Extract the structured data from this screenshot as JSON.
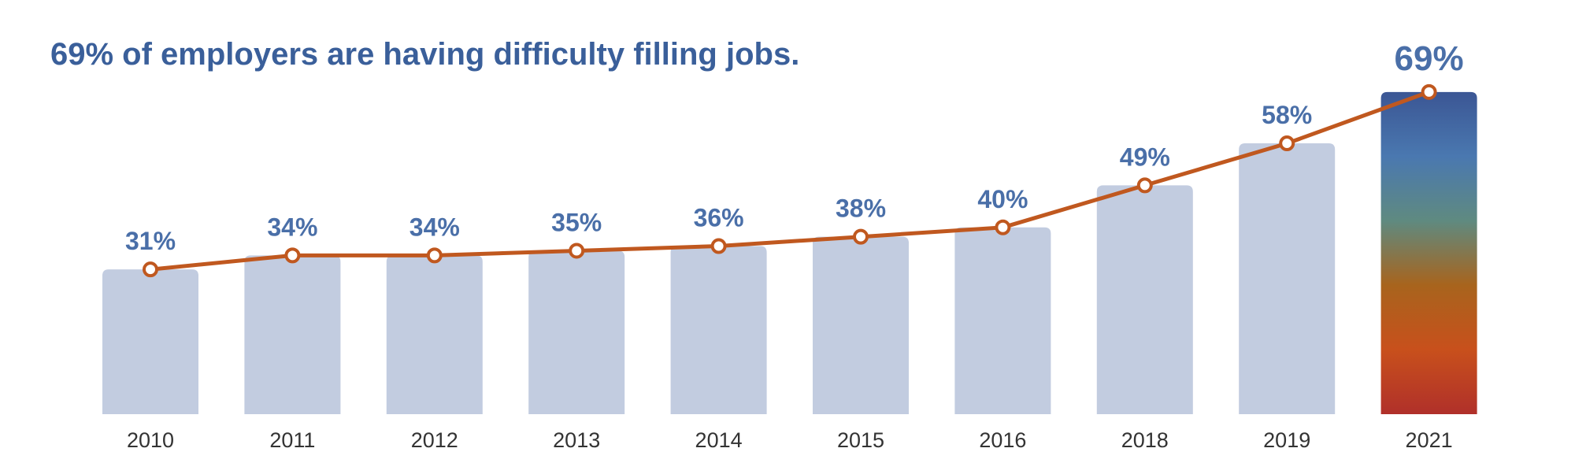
{
  "chart_data": {
    "type": "bar",
    "title": "69% of employers are having difficulty filling jobs.",
    "categories": [
      "2010",
      "2011",
      "2012",
      "2013",
      "2014",
      "2015",
      "2016",
      "2018",
      "2019",
      "2021"
    ],
    "values": [
      31,
      34,
      34,
      35,
      36,
      38,
      40,
      49,
      58,
      69
    ],
    "data_labels": [
      "31%",
      "34%",
      "34%",
      "35%",
      "36%",
      "38%",
      "40%",
      "49%",
      "58%",
      "69%"
    ],
    "overlay": "line",
    "highlight_category": "2021",
    "colors": {
      "title": "#3a5f9a",
      "label": "#4a6fa8",
      "bar": "#c2cce0",
      "line": "#c0581f",
      "tick": "#333333",
      "highlight_gradient": [
        "#3b5694",
        "#4a78b0",
        "#5f8a80",
        "#a8641d",
        "#c8501c",
        "#b0302a"
      ]
    },
    "ylim": [
      0,
      69
    ],
    "grid": false,
    "legend": "none"
  }
}
